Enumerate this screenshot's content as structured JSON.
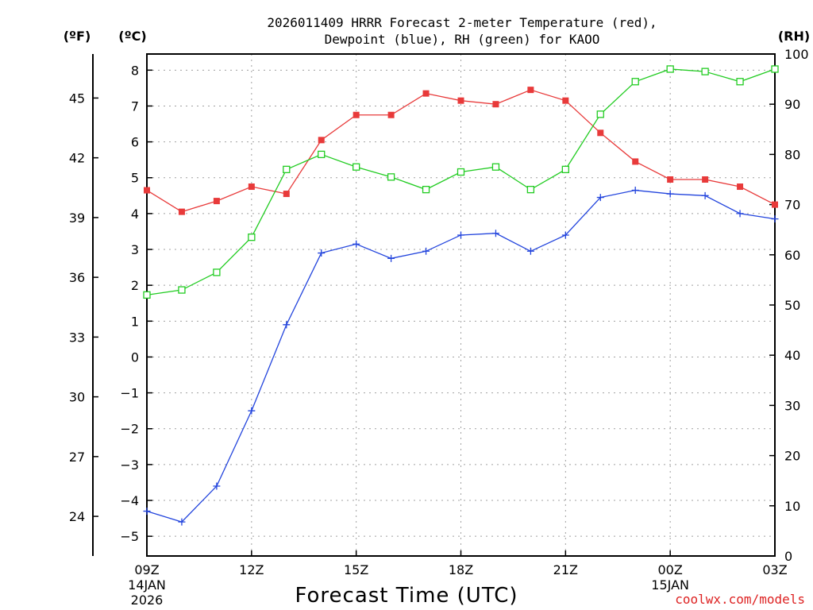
{
  "chart_data": {
    "type": "line",
    "title_line1": "2026011409 HRRR Forecast 2-meter Temperature (red),",
    "title_line2": "Dewpoint (blue), RH (green) for KAOO",
    "xlabel": "Forecast Time (UTC)",
    "credit": "coolwx.com/models",
    "units": {
      "fahrenheit": "(ºF)",
      "celsius": "(ºC)",
      "rh": "(RH)"
    },
    "x_ticks": [
      {
        "hour": 0,
        "label": "09Z",
        "sub1": "14JAN",
        "sub2": "2026"
      },
      {
        "hour": 3,
        "label": "12Z",
        "sub1": "",
        "sub2": ""
      },
      {
        "hour": 6,
        "label": "15Z",
        "sub1": "",
        "sub2": ""
      },
      {
        "hour": 9,
        "label": "18Z",
        "sub1": "",
        "sub2": ""
      },
      {
        "hour": 12,
        "label": "21Z",
        "sub1": "",
        "sub2": ""
      },
      {
        "hour": 15,
        "label": "00Z",
        "sub1": "15JAN",
        "sub2": ""
      },
      {
        "hour": 18,
        "label": "03Z",
        "sub1": "",
        "sub2": ""
      }
    ],
    "xlim": [
      0,
      18
    ],
    "celsius_axis": {
      "ylim": [
        -5.55,
        8.45
      ],
      "ticks": [
        -5,
        -4,
        -3,
        -2,
        -1,
        0,
        1,
        2,
        3,
        4,
        5,
        6,
        7,
        8
      ]
    },
    "fahrenheit_axis": {
      "ticks": [
        24,
        27,
        30,
        33,
        36,
        39,
        42,
        45
      ]
    },
    "rh_axis": {
      "ylim": [
        0,
        100
      ],
      "ticks": [
        0,
        10,
        20,
        30,
        40,
        50,
        60,
        70,
        80,
        90,
        100
      ]
    },
    "series": [
      {
        "name": "Temperature",
        "units": "C",
        "color": "#e83a3a",
        "marker": "filled-square",
        "values": [
          4.65,
          4.05,
          4.35,
          4.75,
          4.55,
          6.05,
          6.75,
          6.75,
          7.35,
          7.15,
          7.05,
          7.45,
          7.15,
          6.25,
          5.45,
          4.95,
          4.95,
          4.75,
          4.25
        ]
      },
      {
        "name": "Dewpoint",
        "units": "C",
        "color": "#2244dd",
        "marker": "plus",
        "values": [
          -4.3,
          -4.6,
          -3.6,
          -1.5,
          0.9,
          2.9,
          3.15,
          2.75,
          2.95,
          3.4,
          3.45,
          2.95,
          3.4,
          4.45,
          4.65,
          4.55,
          4.5,
          4.0,
          3.85
        ]
      },
      {
        "name": "RH",
        "units": "%",
        "color": "#22cc22",
        "marker": "open-square",
        "values": [
          52,
          53,
          56.5,
          63.5,
          77,
          80,
          77.5,
          75.5,
          73,
          76.5,
          77.5,
          73,
          77,
          88,
          94.5,
          97,
          96.5,
          94.5,
          97
        ]
      }
    ]
  }
}
